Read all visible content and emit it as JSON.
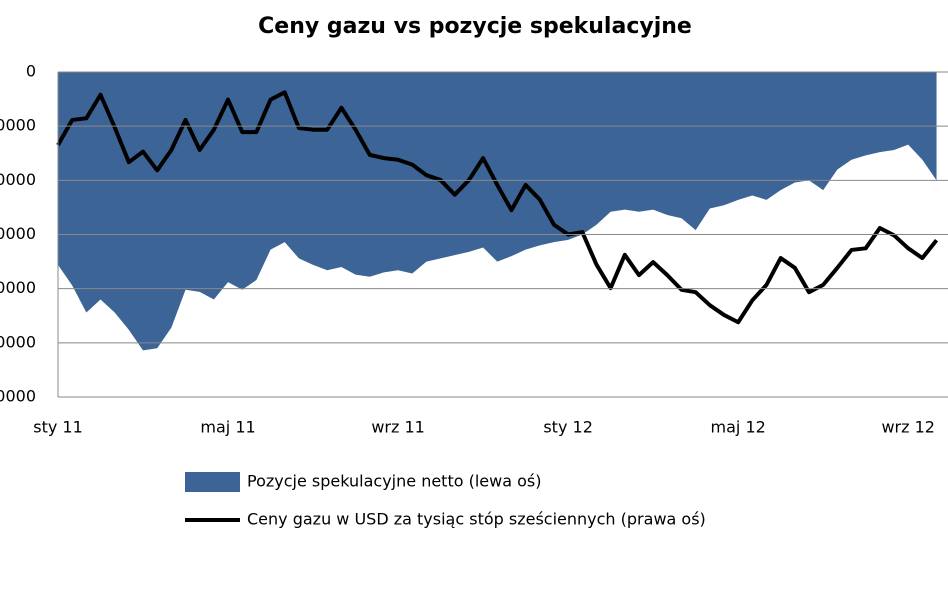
{
  "chart_data": {
    "type": "area-line",
    "title": "Ceny gazu vs pozycje spekulacyjne",
    "categories": [
      "sty 11",
      null,
      null,
      null,
      null,
      null,
      null,
      null,
      null,
      null,
      null,
      null,
      "maj 11",
      null,
      null,
      null,
      null,
      null,
      null,
      null,
      null,
      null,
      null,
      null,
      "wrz 11",
      null,
      null,
      null,
      null,
      null,
      null,
      null,
      null,
      null,
      null,
      null,
      "sty 12",
      null,
      null,
      null,
      null,
      null,
      null,
      null,
      null,
      null,
      null,
      null,
      "maj 12",
      null,
      null,
      null,
      null,
      null,
      null,
      null,
      null,
      null,
      null,
      null,
      "wrz 12",
      null,
      null
    ],
    "series": [
      {
        "name": "Pozycje spekulacyjne netto (lewa oś)",
        "color": "#3c6496",
        "axis": "y",
        "values": [
          -178000,
          -197000,
          -222000,
          -210000,
          -222000,
          -238000,
          -257000,
          -255000,
          -236000,
          -201000,
          -203000,
          -210000,
          -194000,
          -201000,
          -192000,
          -164000,
          -157000,
          -172000,
          -178000,
          -183000,
          -180000,
          -187000,
          -189000,
          -185000,
          -183000,
          -186000,
          -175000,
          -172000,
          -169000,
          -166000,
          -162000,
          -175000,
          -170000,
          -164000,
          -160000,
          -157000,
          -155000,
          -150000,
          -141000,
          -129000,
          -127000,
          -129000,
          -127000,
          -132000,
          -135000,
          -146000,
          -126000,
          -123000,
          -118000,
          -114000,
          -118000,
          -109000,
          -102000,
          -100000,
          -109000,
          -90000,
          -81000,
          -77000,
          -74000,
          -72000,
          -67000,
          -81000,
          -100000
        ]
      },
      {
        "name": "Ceny gazu w USD za tysiąc stóp sześciennych (prawa oś)",
        "color": "#000000",
        "axis": "y2",
        "values": [
          4.1,
          4.41,
          4.43,
          4.72,
          4.32,
          3.89,
          4.02,
          3.79,
          4.04,
          4.41,
          4.04,
          4.29,
          4.66,
          4.26,
          4.26,
          4.66,
          4.75,
          4.31,
          4.29,
          4.29,
          4.56,
          4.29,
          3.98,
          3.94,
          3.92,
          3.86,
          3.73,
          3.67,
          3.49,
          3.67,
          3.94,
          3.61,
          3.3,
          3.61,
          3.43,
          3.12,
          3.0,
          3.03,
          2.63,
          2.34,
          2.75,
          2.5,
          2.66,
          2.5,
          2.32,
          2.29,
          2.13,
          2.01,
          1.92,
          2.19,
          2.38,
          2.71,
          2.59,
          2.29,
          2.38,
          2.59,
          2.81,
          2.83,
          3.08,
          2.99,
          2.83,
          2.71,
          2.93
        ]
      }
    ],
    "ylim": [
      -300000,
      0
    ],
    "yticks": [
      0,
      {
        "value": -50000,
        "label": "0000"
      },
      {
        "value": -100000,
        "label": "0000"
      },
      {
        "value": -150000,
        "label": "0000"
      },
      {
        "value": -200000,
        "label": "0000"
      },
      {
        "value": -250000,
        "label": "0000"
      },
      {
        "value": -300000,
        "label": "0000"
      }
    ],
    "y2lim": [
      1,
      5
    ],
    "grid": true,
    "legend": "bottom"
  }
}
